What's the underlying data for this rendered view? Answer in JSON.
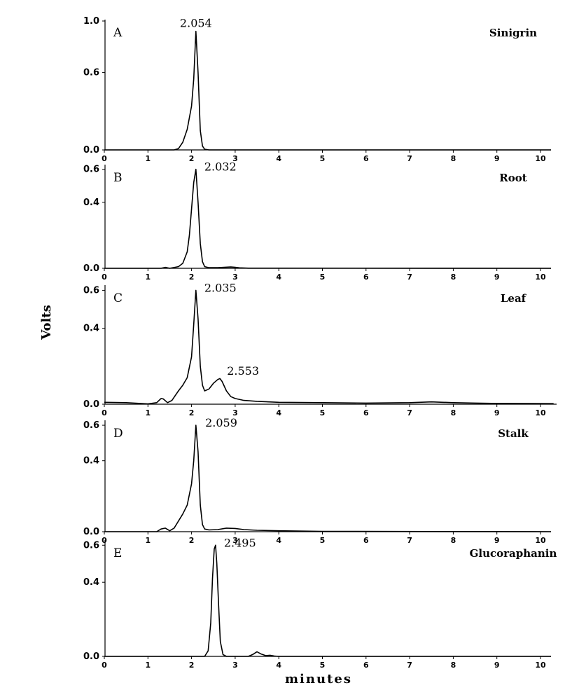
{
  "chart_data": {
    "type": "line",
    "ylabel": "Volts",
    "xlabel": "minutes",
    "x_ticks": [
      "0",
      "1",
      "2",
      "3",
      "4",
      "5",
      "6",
      "7",
      "8",
      "9",
      "10"
    ],
    "xlim": [
      0,
      10.3
    ],
    "panels": [
      {
        "letter": "A",
        "sample": "Sinigrin",
        "ylim": [
          0,
          1.0
        ],
        "y_ticks": [
          "0.0",
          "0.6",
          "1.0"
        ],
        "y_tick_values": [
          0,
          0.6,
          1.0
        ],
        "peak_labels": [
          {
            "text": "2.054",
            "x": 2.1,
            "y": 0.92
          }
        ],
        "series": {
          "x": [
            0,
            1.6,
            1.7,
            1.8,
            1.9,
            2.0,
            2.05,
            2.1,
            2.15,
            2.2,
            2.25,
            2.3,
            2.4,
            2.6,
            3.0,
            10.3
          ],
          "y": [
            0,
            0,
            0.01,
            0.06,
            0.16,
            0.34,
            0.55,
            0.92,
            0.6,
            0.15,
            0.03,
            0.005,
            0,
            0,
            0,
            0
          ]
        }
      },
      {
        "letter": "B",
        "sample": "Root",
        "ylim": [
          0,
          0.62
        ],
        "y_ticks": [
          "0.0",
          "0.4",
          "0.6"
        ],
        "y_tick_values": [
          0,
          0.4,
          0.6
        ],
        "peak_labels": [
          {
            "text": "2.032",
            "x": 2.1,
            "y": 0.6
          }
        ],
        "series": {
          "x": [
            0,
            1.3,
            1.4,
            1.5,
            1.7,
            1.8,
            1.9,
            1.95,
            2.0,
            2.05,
            2.1,
            2.15,
            2.2,
            2.25,
            2.3,
            2.4,
            2.6,
            2.9,
            3.0,
            3.1,
            3.3,
            10.3
          ],
          "y": [
            0,
            0,
            0.006,
            0,
            0.01,
            0.03,
            0.1,
            0.2,
            0.36,
            0.52,
            0.6,
            0.4,
            0.15,
            0.04,
            0.01,
            0.004,
            0.004,
            0.008,
            0.006,
            0.003,
            0.001,
            0
          ]
        }
      },
      {
        "letter": "C",
        "sample": "Leaf",
        "ylim": [
          0,
          0.62
        ],
        "y_ticks": [
          "0.0",
          "0.4",
          "0.6"
        ],
        "y_tick_values": [
          0,
          0.4,
          0.6
        ],
        "peak_labels": [
          {
            "text": "2.035",
            "x": 2.1,
            "y": 0.6
          },
          {
            "text": "2.553",
            "x": 2.62,
            "y": 0.14
          }
        ],
        "series": {
          "x": [
            0,
            0.5,
            1.0,
            1.2,
            1.3,
            1.35,
            1.45,
            1.55,
            1.7,
            1.8,
            1.9,
            2.0,
            2.05,
            2.1,
            2.15,
            2.2,
            2.25,
            2.3,
            2.4,
            2.5,
            2.6,
            2.65,
            2.7,
            2.8,
            2.9,
            3.0,
            3.2,
            3.5,
            4.0,
            5.0,
            6.0,
            7.0,
            7.5,
            8.0,
            8.5,
            9.0,
            10.3
          ],
          "y": [
            0.01,
            0.008,
            0.002,
            0.008,
            0.03,
            0.028,
            0.008,
            0.02,
            0.07,
            0.1,
            0.14,
            0.25,
            0.42,
            0.6,
            0.45,
            0.2,
            0.1,
            0.07,
            0.08,
            0.11,
            0.13,
            0.135,
            0.12,
            0.07,
            0.04,
            0.03,
            0.02,
            0.015,
            0.01,
            0.008,
            0.006,
            0.008,
            0.012,
            0.008,
            0.006,
            0.004,
            0.003
          ]
        }
      },
      {
        "letter": "D",
        "sample": "Stalk",
        "ylim": [
          0,
          0.62
        ],
        "y_ticks": [
          "0.0",
          "0.4",
          "0.6"
        ],
        "y_tick_values": [
          0,
          0.4,
          0.6
        ],
        "peak_labels": [
          {
            "text": "2.059",
            "x": 2.12,
            "y": 0.6
          }
        ],
        "series": {
          "x": [
            0,
            1.2,
            1.3,
            1.4,
            1.5,
            1.6,
            1.7,
            1.8,
            1.9,
            2.0,
            2.05,
            2.1,
            2.15,
            2.2,
            2.25,
            2.3,
            2.4,
            2.6,
            2.8,
            3.0,
            3.2,
            3.5,
            4.0,
            5.0,
            10.3
          ],
          "y": [
            0,
            0,
            0.015,
            0.02,
            0.005,
            0.02,
            0.06,
            0.1,
            0.15,
            0.27,
            0.4,
            0.6,
            0.45,
            0.15,
            0.04,
            0.015,
            0.01,
            0.012,
            0.02,
            0.018,
            0.012,
            0.008,
            0.005,
            0.002,
            0
          ]
        }
      },
      {
        "letter": "E",
        "sample": "Glucoraphanin",
        "ylim": [
          0,
          0.62
        ],
        "y_ticks": [
          "0.0",
          "0.4",
          "0.6"
        ],
        "y_tick_values": [
          0,
          0.4,
          0.6
        ],
        "peak_labels": [
          {
            "text": "2.495",
            "x": 2.55,
            "y": 0.6
          }
        ],
        "series": {
          "x": [
            0,
            2.3,
            2.38,
            2.44,
            2.48,
            2.52,
            2.55,
            2.58,
            2.62,
            2.66,
            2.72,
            2.8,
            3.3,
            3.4,
            3.5,
            3.6,
            3.7,
            3.8,
            3.9,
            4.0,
            10.3
          ],
          "y": [
            0,
            0,
            0.03,
            0.18,
            0.42,
            0.58,
            0.6,
            0.5,
            0.28,
            0.08,
            0.01,
            0,
            0,
            0.01,
            0.025,
            0.012,
            0.004,
            0.006,
            0.002,
            0,
            0
          ]
        }
      }
    ]
  }
}
